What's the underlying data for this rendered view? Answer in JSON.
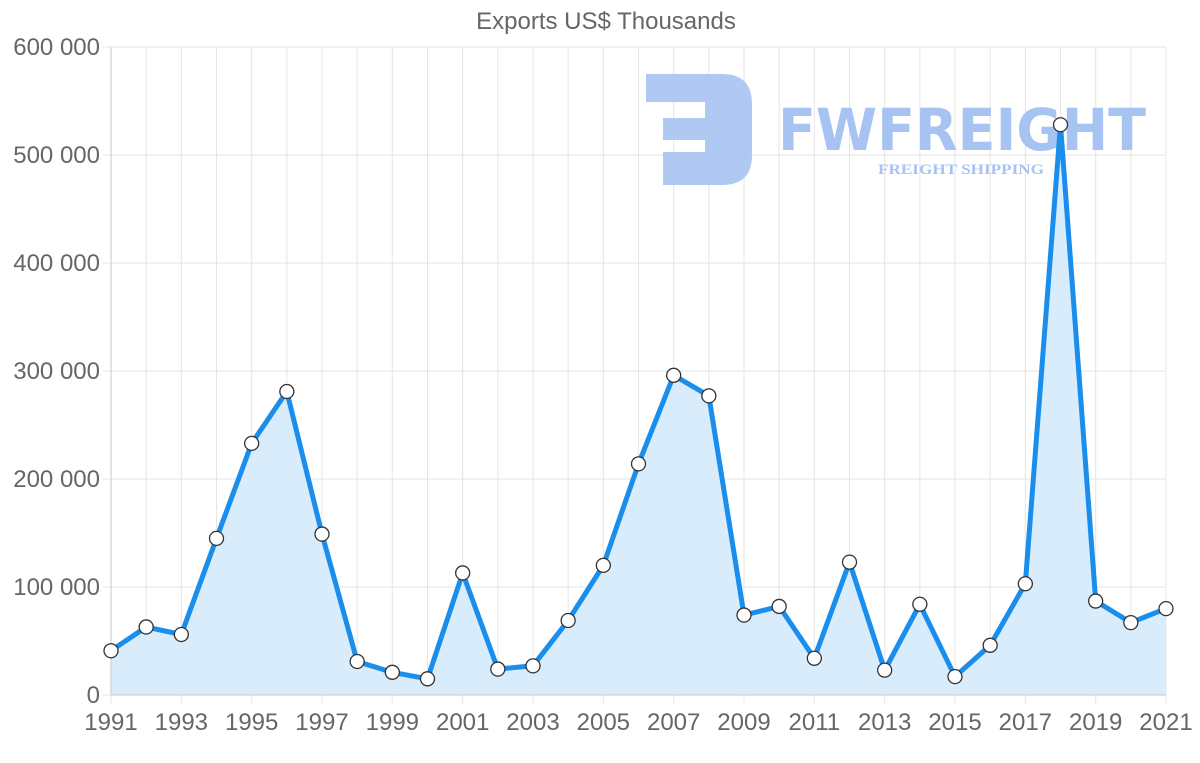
{
  "chart_data": {
    "type": "line",
    "title": "Exports US$ Thousands",
    "xlabel": "",
    "ylabel": "",
    "x": [
      1991,
      1992,
      1993,
      1994,
      1995,
      1996,
      1997,
      1998,
      1999,
      2000,
      2001,
      2002,
      2003,
      2004,
      2005,
      2006,
      2007,
      2008,
      2009,
      2010,
      2011,
      2012,
      2013,
      2014,
      2015,
      2016,
      2017,
      2018,
      2019,
      2020,
      2021
    ],
    "series": [
      {
        "name": "Exports US$ Thousands",
        "values": [
          41000,
          63000,
          56000,
          145000,
          233000,
          281000,
          149000,
          31000,
          21000,
          15000,
          113000,
          24000,
          27000,
          69000,
          120000,
          214000,
          296000,
          277000,
          74000,
          82000,
          34000,
          123000,
          23000,
          84000,
          17000,
          46000,
          103000,
          528000,
          87000,
          67000,
          80000
        ]
      }
    ],
    "ylim": [
      0,
      600000
    ],
    "yticks": [
      0,
      100000,
      200000,
      300000,
      400000,
      500000,
      600000
    ],
    "ytick_labels": [
      "0",
      "100 000",
      "200 000",
      "300 000",
      "400 000",
      "500 000",
      "600 000"
    ],
    "xtick_labels": [
      "1991",
      "1993",
      "1995",
      "1997",
      "1999",
      "2001",
      "2003",
      "2005",
      "2007",
      "2009",
      "2011",
      "2013",
      "2015",
      "2017",
      "2019",
      "2021"
    ],
    "grid": true,
    "legend": "none",
    "area_fill": true
  },
  "colors": {
    "line": "#1a8eed",
    "fill": "#d7ebfc",
    "point_fill": "#ffffff",
    "point_stroke": "#333333",
    "watermark": "#a7c3f2"
  },
  "watermark": {
    "brand": "FWFREIGHT",
    "tagline": "FREIGHT SHIPPING"
  }
}
